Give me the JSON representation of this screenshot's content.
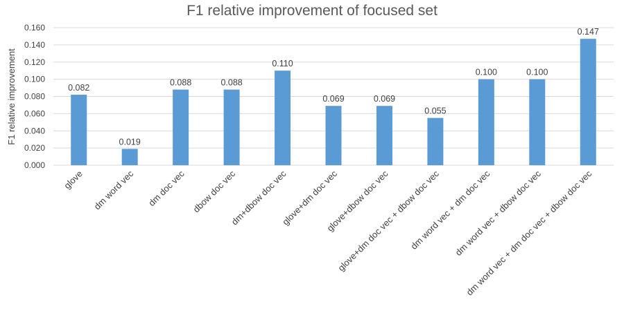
{
  "chart_data": {
    "type": "bar",
    "title": "F1 relative improvement of focused set",
    "xlabel": "",
    "ylabel": "F1 relative improvement",
    "ylim": [
      0,
      0.16
    ],
    "yticks": [
      "0.000",
      "0.020",
      "0.040",
      "0.060",
      "0.080",
      "0.100",
      "0.120",
      "0.140",
      "0.160"
    ],
    "grid": true,
    "legend": "none",
    "bar_color": "#5b9bd5",
    "categories": [
      "glove",
      "dm word vec",
      "dm doc vec",
      "dbow doc vec",
      "dm+dbow doc vec",
      "glove+dm doc vec",
      "glove+dbow doc vec",
      "glove+dm doc vec + dbow doc vec",
      "dm word vec + dm doc vec",
      "dm word vec + dbow doc vec",
      "dm word vec + dm doc vec + dbow doc vec"
    ],
    "values": [
      0.082,
      0.019,
      0.088,
      0.088,
      0.11,
      0.069,
      0.069,
      0.055,
      0.1,
      0.1,
      0.147
    ],
    "data_labels": [
      "0.082",
      "0.019",
      "0.088",
      "0.088",
      "0.110",
      "0.069",
      "0.069",
      "0.055",
      "0.100",
      "0.100",
      "0.147"
    ]
  }
}
